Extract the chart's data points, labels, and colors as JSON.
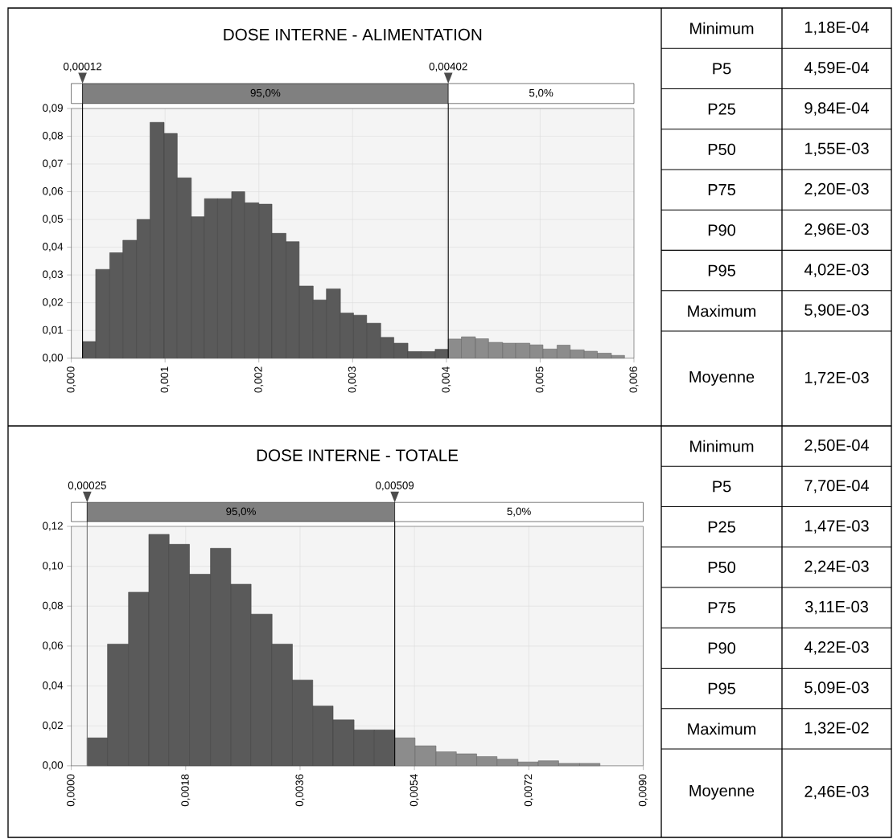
{
  "chart_data": [
    {
      "type": "histogram",
      "title": "DOSE INTERNE - ALIMENTATION",
      "bins": [
        0.00012,
        0.00026,
        0.00041,
        0.00055,
        0.0007,
        0.00084,
        0.00099,
        0.00113,
        0.00128,
        0.00142,
        0.00156,
        0.00171,
        0.00185,
        0.002,
        0.00214,
        0.00229,
        0.00243,
        0.00258,
        0.00272,
        0.00287,
        0.00301,
        0.00315,
        0.0033,
        0.00344,
        0.00359,
        0.00373,
        0.00388,
        0.00402,
        0.00416,
        0.00431,
        0.00445,
        0.0046,
        0.00474,
        0.00489,
        0.00503,
        0.00518,
        0.00532,
        0.00547,
        0.00561,
        0.00576,
        0.0059
      ],
      "values": [
        0.006,
        0.032,
        0.038,
        0.0425,
        0.05,
        0.085,
        0.081,
        0.065,
        0.051,
        0.0575,
        0.0575,
        0.06,
        0.056,
        0.0555,
        0.045,
        0.042,
        0.026,
        0.021,
        0.025,
        0.0163,
        0.0155,
        0.0126,
        0.0075,
        0.0054,
        0.0024,
        0.0024,
        0.0032,
        0.0069,
        0.0077,
        0.007,
        0.0057,
        0.0054,
        0.0054,
        0.0048,
        0.0033,
        0.0047,
        0.003,
        0.0025,
        0.0018,
        0.001
      ],
      "colors": [
        "#5a5a5a",
        "#5a5a5a",
        "#5a5a5a",
        "#5a5a5a",
        "#5a5a5a",
        "#5a5a5a",
        "#5a5a5a",
        "#5a5a5a",
        "#5a5a5a",
        "#5a5a5a",
        "#5a5a5a",
        "#5a5a5a",
        "#5a5a5a",
        "#5a5a5a",
        "#5a5a5a",
        "#5a5a5a",
        "#5a5a5a",
        "#5a5a5a",
        "#5a5a5a",
        "#5a5a5a",
        "#5a5a5a",
        "#5a5a5a",
        "#5a5a5a",
        "#5a5a5a",
        "#5a5a5a",
        "#5a5a5a",
        "#5a5a5a",
        "#8c8c8c",
        "#8c8c8c",
        "#8c8c8c",
        "#8c8c8c",
        "#8c8c8c",
        "#8c8c8c",
        "#8c8c8c",
        "#8c8c8c",
        "#8c8c8c",
        "#8c8c8c",
        "#8c8c8c",
        "#8c8c8c",
        "#8c8c8c"
      ],
      "xlim": [
        0,
        0.006
      ],
      "ylim": [
        0,
        0.09
      ],
      "xticks": [
        {
          "value": 0,
          "label": "0,000"
        },
        {
          "value": 0.001,
          "label": "0,001"
        },
        {
          "value": 0.002,
          "label": "0,002"
        },
        {
          "value": 0.003,
          "label": "0,003"
        },
        {
          "value": 0.004,
          "label": "0,004"
        },
        {
          "value": 0.005,
          "label": "0,005"
        },
        {
          "value": 0.006,
          "label": "0,006"
        }
      ],
      "yticks": [
        {
          "value": 0,
          "label": "0,00"
        },
        {
          "value": 0.01,
          "label": "0,01"
        },
        {
          "value": 0.02,
          "label": "0,02"
        },
        {
          "value": 0.03,
          "label": "0,03"
        },
        {
          "value": 0.04,
          "label": "0,04"
        },
        {
          "value": 0.05,
          "label": "0,05"
        },
        {
          "value": 0.06,
          "label": "0,06"
        },
        {
          "value": 0.07,
          "label": "0,07"
        },
        {
          "value": 0.08,
          "label": "0,08"
        },
        {
          "value": 0.09,
          "label": "0,09"
        }
      ],
      "grid": true,
      "ref_lines": [
        {
          "axis": "x",
          "value": 0.00012,
          "label": "0,00012",
          "color": "#000000"
        },
        {
          "axis": "x",
          "value": 0.00402,
          "label": "0,00402",
          "color": "#000000"
        }
      ],
      "annotations": [
        "95,0%",
        "5,0%"
      ]
    },
    {
      "type": "other",
      "categories": [
        "Minimum",
        "P5",
        "P25",
        "P50",
        "P75",
        "P90",
        "P95",
        "Maximum",
        "Moyenne"
      ],
      "value_labels": [
        "1,18E-04",
        "4,59E-04",
        "9,84E-04",
        "1,55E-03",
        "2,20E-03",
        "2,96E-03",
        "4,02E-03",
        "5,90E-03",
        "1,72E-03"
      ]
    },
    {
      "type": "histogram",
      "title": "DOSE INTERNE - TOTALE",
      "bins": [
        0.00025,
        0.00057,
        0.0009,
        0.00122,
        0.00154,
        0.00186,
        0.00219,
        0.00251,
        0.00283,
        0.00316,
        0.00348,
        0.0038,
        0.00412,
        0.00445,
        0.00477,
        0.00509,
        0.00541,
        0.00574,
        0.00606,
        0.00638,
        0.0067,
        0.00703,
        0.00735,
        0.00767,
        0.008,
        0.00832
      ],
      "values": [
        0.014,
        0.061,
        0.087,
        0.116,
        0.111,
        0.096,
        0.109,
        0.091,
        0.076,
        0.061,
        0.043,
        0.03,
        0.023,
        0.018,
        0.018,
        0.014,
        0.01,
        0.007,
        0.006,
        0.0046,
        0.0033,
        0.0019,
        0.0025,
        0.0012,
        0.0012
      ],
      "colors": [
        "#5a5a5a",
        "#5a5a5a",
        "#5a5a5a",
        "#5a5a5a",
        "#5a5a5a",
        "#5a5a5a",
        "#5a5a5a",
        "#5a5a5a",
        "#5a5a5a",
        "#5a5a5a",
        "#5a5a5a",
        "#5a5a5a",
        "#5a5a5a",
        "#5a5a5a",
        "#5a5a5a",
        "#8c8c8c",
        "#8c8c8c",
        "#8c8c8c",
        "#8c8c8c",
        "#8c8c8c",
        "#8c8c8c",
        "#8c8c8c",
        "#8c8c8c",
        "#8c8c8c",
        "#8c8c8c"
      ],
      "xlim": [
        0,
        0.009
      ],
      "ylim": [
        0,
        0.12
      ],
      "xticks": [
        {
          "value": 0,
          "label": "0,0000"
        },
        {
          "value": 0.0018,
          "label": "0,0018"
        },
        {
          "value": 0.0036,
          "label": "0,0036"
        },
        {
          "value": 0.0054,
          "label": "0,0054"
        },
        {
          "value": 0.0072,
          "label": "0,0072"
        },
        {
          "value": 0.009,
          "label": "0,0090"
        }
      ],
      "yticks": [
        {
          "value": 0,
          "label": "0,00"
        },
        {
          "value": 0.02,
          "label": "0,02"
        },
        {
          "value": 0.04,
          "label": "0,04"
        },
        {
          "value": 0.06,
          "label": "0,06"
        },
        {
          "value": 0.08,
          "label": "0,08"
        },
        {
          "value": 0.1,
          "label": "0,10"
        },
        {
          "value": 0.12,
          "label": "0,12"
        }
      ],
      "grid": true,
      "ref_lines": [
        {
          "axis": "x",
          "value": 0.00025,
          "label": "0,00025",
          "color": "#707070"
        },
        {
          "axis": "x",
          "value": 0.00509,
          "label": "0,00509",
          "color": "#000000"
        }
      ],
      "annotations": [
        "95,0%",
        "5,0%"
      ]
    },
    {
      "type": "other",
      "categories": [
        "Minimum",
        "P5",
        "P25",
        "P50",
        "P75",
        "P90",
        "P95",
        "Maximum",
        "Moyenne"
      ],
      "value_labels": [
        "2,50E-04",
        "7,70E-04",
        "1,47E-03",
        "2,24E-03",
        "3,11E-03",
        "4,22E-03",
        "5,09E-03",
        "1,32E-02",
        "2,46E-03"
      ]
    }
  ]
}
